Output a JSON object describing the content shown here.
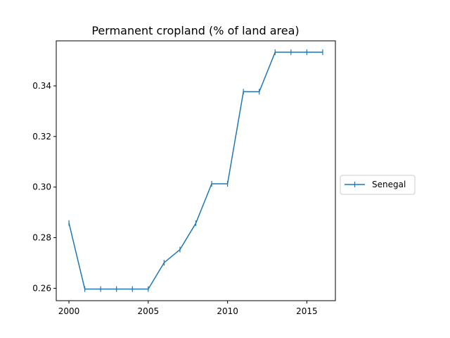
{
  "chart_data": {
    "type": "line",
    "title": "Permanent cropland (% of land area)",
    "xlabel": "",
    "ylabel": "",
    "x": [
      2000,
      2001,
      2002,
      2003,
      2004,
      2005,
      2006,
      2007,
      2008,
      2009,
      2010,
      2011,
      2012,
      2013,
      2014,
      2015,
      2016
    ],
    "series": [
      {
        "name": "Senegal",
        "color": "#1f77b4",
        "marker": "vertical-tick",
        "values": [
          0.2858,
          0.2597,
          0.2597,
          0.2597,
          0.2597,
          0.2597,
          0.2701,
          0.2753,
          0.2857,
          0.3013,
          0.3013,
          0.3377,
          0.3377,
          0.3533,
          0.3533,
          0.3533,
          0.3533
        ]
      }
    ],
    "xlim": [
      1999.2,
      2016.8
    ],
    "ylim": [
      0.2551,
      0.3578
    ],
    "xticks": [
      2000,
      2005,
      2010,
      2015
    ],
    "xtick_labels": [
      "2000",
      "2005",
      "2010",
      "2015"
    ],
    "yticks": [
      0.26,
      0.28,
      0.3,
      0.32,
      0.34
    ],
    "ytick_labels": [
      "0.26",
      "0.28",
      "0.30",
      "0.32",
      "0.34"
    ],
    "grid": false,
    "legend_position": "outside-right"
  }
}
